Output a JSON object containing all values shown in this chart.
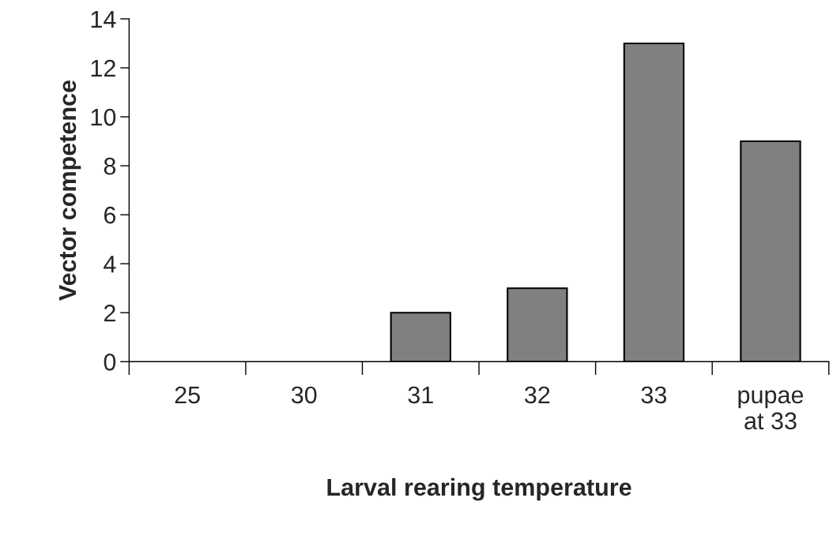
{
  "chart_data": {
    "type": "bar",
    "xlabel": "Larval rearing temperature",
    "ylabel": "Vector competence",
    "categories": [
      "25",
      "30",
      "31",
      "32",
      "33",
      "pupae\nat 33"
    ],
    "values": [
      0,
      0,
      2,
      3,
      13,
      9
    ],
    "color": "#808080",
    "ylim": [
      0,
      14
    ],
    "yticks": [
      0,
      2,
      4,
      6,
      8,
      10,
      12,
      14
    ],
    "grid": false,
    "legend": false
  }
}
